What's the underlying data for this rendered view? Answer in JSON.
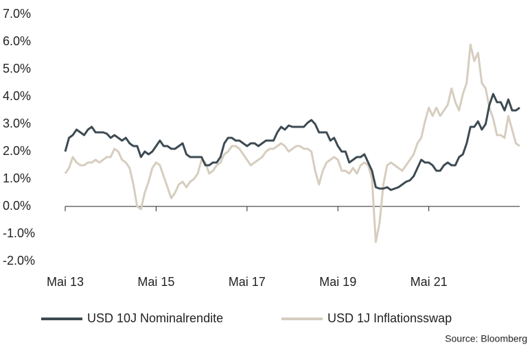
{
  "chart_data": {
    "type": "line",
    "x": [
      "2013-05",
      "2013-06",
      "2013-07",
      "2013-08",
      "2013-09",
      "2013-10",
      "2013-11",
      "2013-12",
      "2014-01",
      "2014-02",
      "2014-03",
      "2014-04",
      "2014-05",
      "2014-06",
      "2014-07",
      "2014-08",
      "2014-09",
      "2014-10",
      "2014-11",
      "2014-12",
      "2015-01",
      "2015-02",
      "2015-03",
      "2015-04",
      "2015-05",
      "2015-06",
      "2015-07",
      "2015-08",
      "2015-09",
      "2015-10",
      "2015-11",
      "2015-12",
      "2016-01",
      "2016-02",
      "2016-03",
      "2016-04",
      "2016-05",
      "2016-06",
      "2016-07",
      "2016-08",
      "2016-09",
      "2016-10",
      "2016-11",
      "2016-12",
      "2017-01",
      "2017-02",
      "2017-03",
      "2017-04",
      "2017-05",
      "2017-06",
      "2017-07",
      "2017-08",
      "2017-09",
      "2017-10",
      "2017-11",
      "2017-12",
      "2018-01",
      "2018-02",
      "2018-03",
      "2018-04",
      "2018-05",
      "2018-06",
      "2018-07",
      "2018-08",
      "2018-09",
      "2018-10",
      "2018-11",
      "2018-12",
      "2019-01",
      "2019-02",
      "2019-03",
      "2019-04",
      "2019-05",
      "2019-06",
      "2019-07",
      "2019-08",
      "2019-09",
      "2019-10",
      "2019-11",
      "2019-12",
      "2020-01",
      "2020-02",
      "2020-03",
      "2020-04",
      "2020-05",
      "2020-06",
      "2020-07",
      "2020-08",
      "2020-09",
      "2020-10",
      "2020-11",
      "2020-12",
      "2021-01",
      "2021-02",
      "2021-03",
      "2021-04",
      "2021-05",
      "2021-06",
      "2021-07",
      "2021-08",
      "2021-09",
      "2021-10",
      "2021-11",
      "2021-12",
      "2022-01",
      "2022-02",
      "2022-03",
      "2022-04",
      "2022-05",
      "2022-06",
      "2022-07",
      "2022-08",
      "2022-09",
      "2022-10",
      "2022-11",
      "2022-12",
      "2023-01",
      "2023-02",
      "2023-03",
      "2023-04",
      "2023-05"
    ],
    "series": [
      {
        "name": "USD 10J Nominalrendite",
        "color": "#3d4a52",
        "values": [
          2.0,
          2.5,
          2.6,
          2.8,
          2.7,
          2.6,
          2.8,
          2.9,
          2.7,
          2.7,
          2.7,
          2.65,
          2.5,
          2.6,
          2.5,
          2.4,
          2.5,
          2.3,
          2.2,
          2.2,
          1.8,
          2.0,
          1.9,
          2.0,
          2.2,
          2.4,
          2.2,
          2.2,
          2.1,
          2.1,
          2.2,
          2.3,
          1.9,
          1.8,
          1.8,
          1.8,
          1.8,
          1.5,
          1.5,
          1.6,
          1.6,
          1.8,
          2.3,
          2.5,
          2.5,
          2.4,
          2.4,
          2.3,
          2.2,
          2.3,
          2.3,
          2.2,
          2.3,
          2.4,
          2.4,
          2.4,
          2.7,
          2.9,
          2.8,
          2.95,
          2.9,
          2.9,
          2.9,
          2.9,
          3.05,
          3.15,
          3.0,
          2.7,
          2.7,
          2.7,
          2.4,
          2.5,
          2.2,
          2.0,
          2.0,
          1.6,
          1.7,
          1.8,
          1.8,
          1.9,
          1.6,
          1.3,
          0.7,
          0.65,
          0.65,
          0.7,
          0.6,
          0.65,
          0.7,
          0.8,
          0.9,
          0.95,
          1.1,
          1.4,
          1.7,
          1.6,
          1.6,
          1.5,
          1.3,
          1.3,
          1.5,
          1.6,
          1.5,
          1.5,
          1.8,
          1.9,
          2.3,
          2.9,
          2.9,
          3.1,
          2.8,
          3.0,
          3.7,
          4.1,
          3.8,
          3.8,
          3.5,
          3.9,
          3.5,
          3.5,
          3.6
        ]
      },
      {
        "name": "USD 1J Inflationsswap",
        "color": "#d6cdbf",
        "values": [
          1.2,
          1.4,
          1.8,
          1.6,
          1.5,
          1.5,
          1.6,
          1.6,
          1.7,
          1.6,
          1.7,
          1.8,
          1.8,
          2.1,
          2.0,
          1.7,
          1.6,
          1.4,
          0.8,
          0.0,
          -0.1,
          0.5,
          0.9,
          1.4,
          1.6,
          1.5,
          1.1,
          0.7,
          0.3,
          0.5,
          0.8,
          0.9,
          0.7,
          0.9,
          1.0,
          1.2,
          1.7,
          1.6,
          1.2,
          1.3,
          1.5,
          1.6,
          1.9,
          2.0,
          2.2,
          2.2,
          2.1,
          1.9,
          1.7,
          1.5,
          1.6,
          1.7,
          1.8,
          2.0,
          2.1,
          2.1,
          2.2,
          2.3,
          2.2,
          2.0,
          2.1,
          2.2,
          2.2,
          2.1,
          2.1,
          2.0,
          1.3,
          0.8,
          1.3,
          1.6,
          1.7,
          1.8,
          1.7,
          1.3,
          1.3,
          1.2,
          1.4,
          1.2,
          1.5,
          1.6,
          1.5,
          1.0,
          -1.3,
          -0.6,
          0.8,
          1.5,
          1.6,
          1.5,
          1.4,
          1.3,
          1.5,
          1.7,
          1.9,
          2.3,
          2.5,
          3.1,
          3.6,
          3.3,
          3.6,
          3.3,
          3.5,
          3.7,
          4.3,
          3.8,
          3.5,
          4.1,
          4.5,
          5.9,
          5.3,
          5.6,
          4.5,
          4.3,
          3.6,
          3.2,
          2.6,
          2.6,
          2.5,
          3.3,
          2.8,
          2.3,
          2.2
        ]
      }
    ],
    "xlim": [
      "2013-05",
      "2023-05"
    ],
    "xticks": [
      {
        "value": "2013-05",
        "label": "Mai 13"
      },
      {
        "value": "2015-05",
        "label": "Mai 15"
      },
      {
        "value": "2017-05",
        "label": "Mai 17"
      },
      {
        "value": "2019-05",
        "label": "Mai 19"
      },
      {
        "value": "2021-05",
        "label": "Mai 21"
      }
    ],
    "ylim": [
      -2,
      7
    ],
    "yticks": [
      {
        "value": -2,
        "label": "-2.0%"
      },
      {
        "value": -1,
        "label": "-1.0%"
      },
      {
        "value": 0,
        "label": "0.0%"
      },
      {
        "value": 1,
        "label": "1.0%"
      },
      {
        "value": 2,
        "label": "2.0%"
      },
      {
        "value": 3,
        "label": "3.0%"
      },
      {
        "value": 4,
        "label": "4.0%"
      },
      {
        "value": 5,
        "label": "5.0%"
      },
      {
        "value": 6,
        "label": "6.0%"
      },
      {
        "value": 7,
        "label": "7.0%"
      }
    ],
    "source": "Source: Bloomberg",
    "legend": "bottom"
  }
}
